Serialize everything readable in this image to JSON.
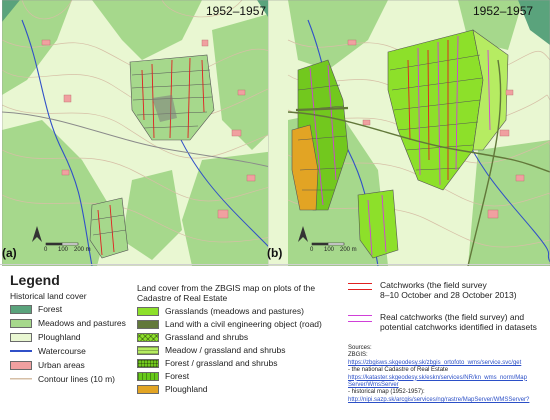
{
  "map_a": {
    "label": "(a)",
    "period": "1952–1957",
    "scale": {
      "zero": "0",
      "mid": "100",
      "end": "200 m"
    }
  },
  "map_b": {
    "label": "(b)",
    "period": "1952–1957",
    "scale": {
      "zero": "0",
      "mid": "100",
      "end": "200 m"
    }
  },
  "legend": {
    "title": "Legend",
    "historical_heading": "Historical land cover",
    "historical_items": [
      {
        "label": "Forest",
        "color": "#5aa37c"
      },
      {
        "label": "Meadows and pastures",
        "color": "#a6d88c"
      },
      {
        "label": "Ploughland",
        "color": "#e9f7d2"
      },
      {
        "label": "Watercourse",
        "color": "#3050c8"
      },
      {
        "label": "Urban areas",
        "color": "#f0a0a0"
      },
      {
        "label": "Contour lines (10 m)",
        "color": "#d6bfa6"
      }
    ],
    "zbgis_heading_1": "Land cover from the ZBGIS map on plots of the",
    "zbgis_heading_2": "Cadastre of Real Estate",
    "zbgis_items": [
      {
        "label": "Grasslands (meadows and pastures)",
        "color": "#8de02a"
      },
      {
        "label": "Land with a civil engineering object (road)",
        "color": "#62783a"
      },
      {
        "label": "Grassland and shrubs",
        "color": "#8de02a"
      },
      {
        "label": "Meadow / grassland and shrubs",
        "color": "#b6ec62"
      },
      {
        "label": "Forest / grassland and shrubs",
        "color": "#72c81e"
      },
      {
        "label": "Forest",
        "color": "#66c81a"
      },
      {
        "label": "Ploughland",
        "color": "#e2a424"
      }
    ],
    "catchworks_1": "Catchworks (the field survey",
    "catchworks_2": "8–10 October and 28 October 2013)",
    "real_catchworks_1": "Real catchworks (the field survey) and",
    "real_catchworks_2": "potential catchworks identified in datasets",
    "catchworks_color": "#e02020",
    "real_catchworks_color": "#d040d8"
  },
  "sources": {
    "heading": "Sources:",
    "zbgis_label": "ZBGIS:",
    "link1": "https://zbgisws.skgeodesy.sk/zbgis_ortofoto_wms/service.svc/get",
    "text1": "- the national Cadastre of Real Estate",
    "link2a": "https://kataster.skgeodesy.sk/eskn/services/NR/kn_wms_norm/Map",
    "link2b": "Server/WmsServer",
    "text2": "- historical map (1952-1957):",
    "link3": "http://nipi.sazp.sk/arcgis/services/ng/rastre/MapServer/WMSServer?"
  }
}
